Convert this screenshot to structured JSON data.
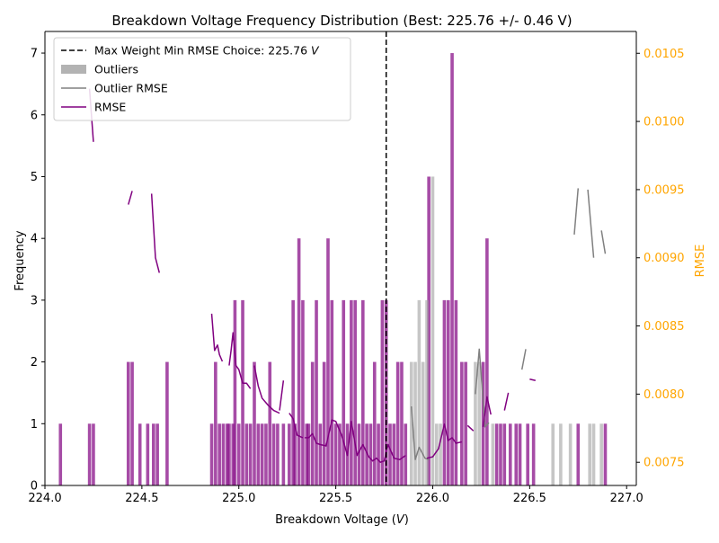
{
  "chart_data": {
    "type": "bar",
    "title": "Breakdown Voltage Frequency Distribution (Best: 225.76 +/- 0.46 V)",
    "xlabel": "Breakdown Voltage (V)",
    "ylabel": "Frequency",
    "y2label": "RMSE",
    "xlim": [
      224.0,
      227.05
    ],
    "ylim": [
      0,
      7.35
    ],
    "y2lim": [
      0.00733,
      0.01066
    ],
    "xticks": [
      "224.0",
      "224.5",
      "225.0",
      "225.5",
      "226.0",
      "226.5",
      "227.0"
    ],
    "yticks": [
      "0",
      "1",
      "2",
      "3",
      "4",
      "5",
      "6",
      "7"
    ],
    "y2ticks": [
      "0.0075",
      "0.0080",
      "0.0085",
      "0.0090",
      "0.0095",
      "0.0100",
      "0.0105"
    ],
    "best_voltage": 225.76,
    "colors": {
      "histogram": "#800080",
      "outliers": "#a0a0a0",
      "outlier_rmse": "#808080",
      "rmse": "#800080",
      "best_line": "#000000",
      "right_axis": "#ffa500"
    },
    "legend": {
      "placement": "top-left",
      "entries": [
        {
          "label_prefix": "Max Weight Min RMSE Choice: 225.76 ",
          "label_unit": "V",
          "style": "dashed-line"
        },
        {
          "label": "Outliers",
          "style": "patch"
        },
        {
          "label": "Outlier RMSE",
          "style": "line"
        },
        {
          "label": "RMSE",
          "style": "line"
        }
      ]
    },
    "series": [
      {
        "name": "",
        "type": "bar",
        "bins": [
          [
            224.08,
            1
          ],
          [
            224.23,
            1
          ],
          [
            224.25,
            1
          ],
          [
            224.43,
            2
          ],
          [
            224.45,
            2
          ],
          [
            224.49,
            1
          ],
          [
            224.53,
            1
          ],
          [
            224.56,
            1
          ],
          [
            224.58,
            1
          ],
          [
            224.63,
            2
          ],
          [
            224.86,
            1
          ],
          [
            224.88,
            2
          ],
          [
            224.9,
            1
          ],
          [
            224.92,
            1
          ],
          [
            224.94,
            1
          ],
          [
            224.95,
            1
          ],
          [
            224.97,
            1
          ],
          [
            224.98,
            3
          ],
          [
            225.0,
            1
          ],
          [
            225.02,
            3
          ],
          [
            225.04,
            1
          ],
          [
            225.06,
            1
          ],
          [
            225.08,
            2
          ],
          [
            225.1,
            1
          ],
          [
            225.12,
            1
          ],
          [
            225.14,
            1
          ],
          [
            225.16,
            2
          ],
          [
            225.18,
            1
          ],
          [
            225.2,
            1
          ],
          [
            225.23,
            1
          ],
          [
            225.26,
            1
          ],
          [
            225.28,
            3
          ],
          [
            225.29,
            1
          ],
          [
            225.31,
            4
          ],
          [
            225.33,
            3
          ],
          [
            225.35,
            1
          ],
          [
            225.36,
            1
          ],
          [
            225.38,
            2
          ],
          [
            225.4,
            3
          ],
          [
            225.42,
            1
          ],
          [
            225.44,
            2
          ],
          [
            225.46,
            4
          ],
          [
            225.48,
            3
          ],
          [
            225.5,
            1
          ],
          [
            225.52,
            1
          ],
          [
            225.54,
            3
          ],
          [
            225.56,
            1
          ],
          [
            225.58,
            3
          ],
          [
            225.6,
            3
          ],
          [
            225.62,
            1
          ],
          [
            225.64,
            3
          ],
          [
            225.66,
            1
          ],
          [
            225.68,
            1
          ],
          [
            225.7,
            2
          ],
          [
            225.72,
            1
          ],
          [
            225.74,
            3
          ],
          [
            225.76,
            3
          ],
          [
            225.78,
            1
          ],
          [
            225.8,
            1
          ],
          [
            225.82,
            2
          ],
          [
            225.84,
            2
          ],
          [
            225.86,
            1
          ],
          [
            225.98,
            5
          ],
          [
            226.06,
            3
          ],
          [
            226.08,
            3
          ],
          [
            226.1,
            7
          ],
          [
            226.12,
            3
          ],
          [
            226.15,
            2
          ],
          [
            226.17,
            2
          ],
          [
            226.26,
            2
          ],
          [
            226.28,
            4
          ],
          [
            226.33,
            1
          ],
          [
            226.35,
            1
          ],
          [
            226.37,
            1
          ],
          [
            226.4,
            1
          ],
          [
            226.43,
            1
          ],
          [
            226.45,
            1
          ],
          [
            226.49,
            1
          ],
          [
            226.52,
            1
          ],
          [
            226.75,
            1
          ],
          [
            226.89,
            1
          ]
        ]
      },
      {
        "name": "Outliers",
        "type": "bar",
        "bins": [
          [
            225.89,
            2
          ],
          [
            225.91,
            2
          ],
          [
            225.93,
            3
          ],
          [
            225.95,
            2
          ],
          [
            225.97,
            3
          ],
          [
            226.0,
            5
          ],
          [
            226.02,
            1
          ],
          [
            226.04,
            1
          ],
          [
            226.22,
            2
          ],
          [
            226.24,
            2
          ],
          [
            226.31,
            1
          ],
          [
            226.62,
            1
          ],
          [
            226.66,
            1
          ],
          [
            226.71,
            1
          ],
          [
            226.81,
            1
          ],
          [
            226.83,
            1
          ],
          [
            226.87,
            1
          ]
        ]
      },
      {
        "name": "RMSE",
        "type": "line",
        "segments": [
          [
            [
              224.23,
              0.01024
            ],
            [
              224.25,
              0.00985
            ]
          ],
          [
            [
              224.43,
              0.00939
            ],
            [
              224.45,
              0.00949
            ]
          ],
          [
            [
              224.55,
              0.00947
            ],
            [
              224.57,
              0.009
            ],
            [
              224.59,
              0.00889
            ]
          ],
          [
            [
              224.86,
              0.00859
            ],
            [
              224.875,
              0.00832
            ],
            [
              224.89,
              0.00836
            ],
            [
              224.9,
              0.00829
            ],
            [
              224.915,
              0.00824
            ]
          ],
          [
            [
              224.95,
              0.00821
            ],
            [
              224.96,
              0.00832
            ],
            [
              224.97,
              0.00845
            ],
            [
              224.985,
              0.00821
            ],
            [
              225.0,
              0.00818
            ],
            [
              225.02,
              0.00808
            ],
            [
              225.04,
              0.00808
            ],
            [
              225.06,
              0.00804
            ]
          ],
          [
            [
              225.08,
              0.00821
            ],
            [
              225.1,
              0.00806
            ],
            [
              225.12,
              0.00797
            ],
            [
              225.15,
              0.00792
            ],
            [
              225.18,
              0.00788
            ],
            [
              225.21,
              0.00786
            ]
          ],
          [
            [
              225.21,
              0.00788
            ],
            [
              225.23,
              0.0081
            ]
          ],
          [
            [
              225.26,
              0.00786
            ],
            [
              225.28,
              0.00782
            ],
            [
              225.3,
              0.0077
            ],
            [
              225.33,
              0.00768
            ]
          ],
          [
            [
              225.34,
              0.00768
            ],
            [
              225.36,
              0.00768
            ],
            [
              225.38,
              0.00771
            ],
            [
              225.4,
              0.00764
            ],
            [
              225.42,
              0.00763
            ],
            [
              225.45,
              0.00762
            ],
            [
              225.48,
              0.00781
            ],
            [
              225.5,
              0.0078
            ],
            [
              225.53,
              0.0077
            ],
            [
              225.56,
              0.00755
            ],
            [
              225.58,
              0.0078
            ],
            [
              225.61,
              0.00755
            ],
            [
              225.64,
              0.00763
            ],
            [
              225.67,
              0.00754
            ],
            [
              225.69,
              0.00751
            ],
            [
              225.71,
              0.00753
            ],
            [
              225.73,
              0.0075
            ],
            [
              225.75,
              0.00751
            ],
            [
              225.77,
              0.00763
            ],
            [
              225.8,
              0.00753
            ],
            [
              225.83,
              0.00752
            ],
            [
              225.86,
              0.00755
            ]
          ],
          [
            [
              225.97,
              0.00753
            ],
            [
              226.0,
              0.00754
            ],
            [
              226.03,
              0.0076
            ],
            [
              226.06,
              0.00778
            ],
            [
              226.08,
              0.00766
            ],
            [
              226.1,
              0.00768
            ],
            [
              226.12,
              0.00764
            ],
            [
              226.15,
              0.00765
            ]
          ],
          [
            [
              226.18,
              0.00777
            ],
            [
              226.21,
              0.00773
            ]
          ],
          [
            [
              226.26,
              0.00776
            ],
            [
              226.28,
              0.00798
            ],
            [
              226.3,
              0.00785
            ]
          ],
          [
            [
              226.37,
              0.00788
            ],
            [
              226.39,
              0.00801
            ]
          ],
          [
            [
              226.5,
              0.00811
            ],
            [
              226.53,
              0.0081
            ]
          ]
        ]
      },
      {
        "name": "Outlier RMSE",
        "type": "line",
        "segments": [
          [
            [
              225.89,
              0.00791
            ],
            [
              225.91,
              0.00752
            ],
            [
              225.93,
              0.00761
            ],
            [
              225.96,
              0.00753
            ],
            [
              225.98,
              0.00752
            ]
          ],
          [
            [
              226.22,
              0.008
            ],
            [
              226.24,
              0.00833
            ],
            [
              226.27,
              0.00776
            ],
            [
              226.29,
              0.00779
            ]
          ],
          [
            [
              226.46,
              0.00818
            ],
            [
              226.48,
              0.00833
            ]
          ],
          [
            [
              226.73,
              0.00917
            ],
            [
              226.75,
              0.00951
            ]
          ],
          [
            [
              226.8,
              0.0095
            ],
            [
              226.83,
              0.009
            ]
          ],
          [
            [
              226.87,
              0.0092
            ],
            [
              226.89,
              0.00903
            ]
          ]
        ]
      }
    ]
  }
}
